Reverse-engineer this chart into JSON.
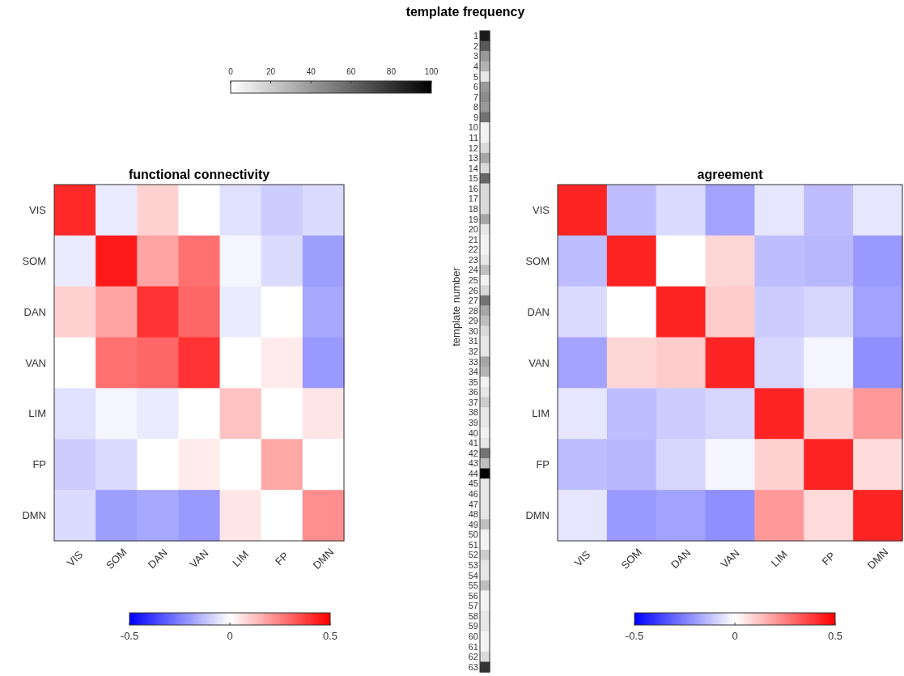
{
  "chart_data": [
    {
      "type": "heatmap",
      "title": "template frequency",
      "ylabel": "template number",
      "categories": [
        null
      ],
      "y_categories": [
        "1",
        "2",
        "3",
        "4",
        "5",
        "6",
        "7",
        "8",
        "9",
        "10",
        "11",
        "12",
        "13",
        "14",
        "15",
        "16",
        "17",
        "18",
        "19",
        "20",
        "21",
        "22",
        "23",
        "24",
        "25",
        "26",
        "27",
        "28",
        "29",
        "30",
        "31",
        "32",
        "33",
        "34",
        "35",
        "36",
        "37",
        "38",
        "39",
        "40",
        "41",
        "42",
        "43",
        "44",
        "45",
        "46",
        "47",
        "48",
        "49",
        "50",
        "51",
        "52",
        "53",
        "54",
        "55",
        "56",
        "57",
        "58",
        "59",
        "60",
        "61",
        "62",
        "63"
      ],
      "cells": [
        [
          90
        ],
        [
          65
        ],
        [
          40
        ],
        [
          30
        ],
        [
          10
        ],
        [
          40
        ],
        [
          45
        ],
        [
          40
        ],
        [
          55
        ],
        [
          5
        ],
        [
          5
        ],
        [
          15
        ],
        [
          35
        ],
        [
          15
        ],
        [
          60
        ],
        [
          15
        ],
        [
          15
        ],
        [
          15
        ],
        [
          35
        ],
        [
          10
        ],
        [
          5
        ],
        [
          5
        ],
        [
          10
        ],
        [
          25
        ],
        [
          5
        ],
        [
          15
        ],
        [
          55
        ],
        [
          35
        ],
        [
          25
        ],
        [
          15
        ],
        [
          10
        ],
        [
          10
        ],
        [
          35
        ],
        [
          30
        ],
        [
          5
        ],
        [
          10
        ],
        [
          20
        ],
        [
          10
        ],
        [
          10
        ],
        [
          5
        ],
        [
          10
        ],
        [
          55
        ],
        [
          25
        ],
        [
          100
        ],
        [
          10
        ],
        [
          10
        ],
        [
          10
        ],
        [
          10
        ],
        [
          25
        ],
        [
          5
        ],
        [
          5
        ],
        [
          20
        ],
        [
          10
        ],
        [
          10
        ],
        [
          25
        ],
        [
          5
        ],
        [
          5
        ],
        [
          10
        ],
        [
          10
        ],
        [
          5
        ],
        [
          5
        ],
        [
          15
        ],
        [
          80
        ]
      ],
      "clim": [
        0,
        100
      ],
      "cticks": [
        0,
        20,
        40,
        60,
        80,
        100
      ]
    },
    {
      "type": "heatmap",
      "title": "functional connectivity",
      "categories": [
        "VIS",
        "SOM",
        "DAN",
        "VAN",
        "LIM",
        "FP",
        "DMN"
      ],
      "y_categories": [
        "VIS",
        "SOM",
        "DAN",
        "VAN",
        "LIM",
        "FP",
        "DMN"
      ],
      "cells": [
        [
          0.42,
          -0.04,
          0.09,
          0,
          -0.06,
          -0.1,
          -0.07
        ],
        [
          -0.04,
          0.45,
          0.18,
          0.28,
          -0.02,
          -0.07,
          -0.19
        ],
        [
          0.09,
          0.18,
          0.4,
          0.3,
          -0.04,
          0,
          -0.17
        ],
        [
          0,
          0.28,
          0.3,
          0.4,
          0,
          0.04,
          -0.2
        ],
        [
          -0.06,
          -0.02,
          -0.04,
          0,
          0.12,
          0,
          0.05
        ],
        [
          -0.1,
          -0.07,
          0,
          0.04,
          0,
          0.17,
          0
        ],
        [
          -0.07,
          -0.19,
          -0.17,
          -0.2,
          0.05,
          0,
          0.22
        ]
      ],
      "clim": [
        -0.5,
        0.5
      ],
      "cticks": [
        -0.5,
        0,
        0.5
      ]
    },
    {
      "type": "heatmap",
      "title": "agreement",
      "categories": [
        "VIS",
        "SOM",
        "DAN",
        "VAN",
        "LIM",
        "FP",
        "DMN"
      ],
      "y_categories": [
        "VIS",
        "SOM",
        "DAN",
        "VAN",
        "LIM",
        "FP",
        "DMN"
      ],
      "cells": [
        [
          0.43,
          -0.13,
          -0.07,
          -0.18,
          -0.05,
          -0.13,
          -0.05
        ],
        [
          -0.13,
          0.43,
          0,
          0.08,
          -0.13,
          -0.14,
          -0.2
        ],
        [
          -0.07,
          0,
          0.43,
          0.1,
          -0.1,
          -0.08,
          -0.18
        ],
        [
          -0.18,
          0.08,
          0.1,
          0.43,
          -0.08,
          -0.02,
          -0.22
        ],
        [
          -0.05,
          -0.13,
          -0.1,
          -0.08,
          0.43,
          0.09,
          0.2
        ],
        [
          -0.13,
          -0.14,
          -0.08,
          -0.02,
          0.09,
          0.43,
          0.07
        ],
        [
          -0.05,
          -0.2,
          -0.18,
          -0.22,
          0.2,
          0.07,
          0.43
        ]
      ],
      "clim": [
        -0.5,
        0.5
      ],
      "cticks": [
        -0.5,
        0,
        0.5
      ]
    }
  ]
}
